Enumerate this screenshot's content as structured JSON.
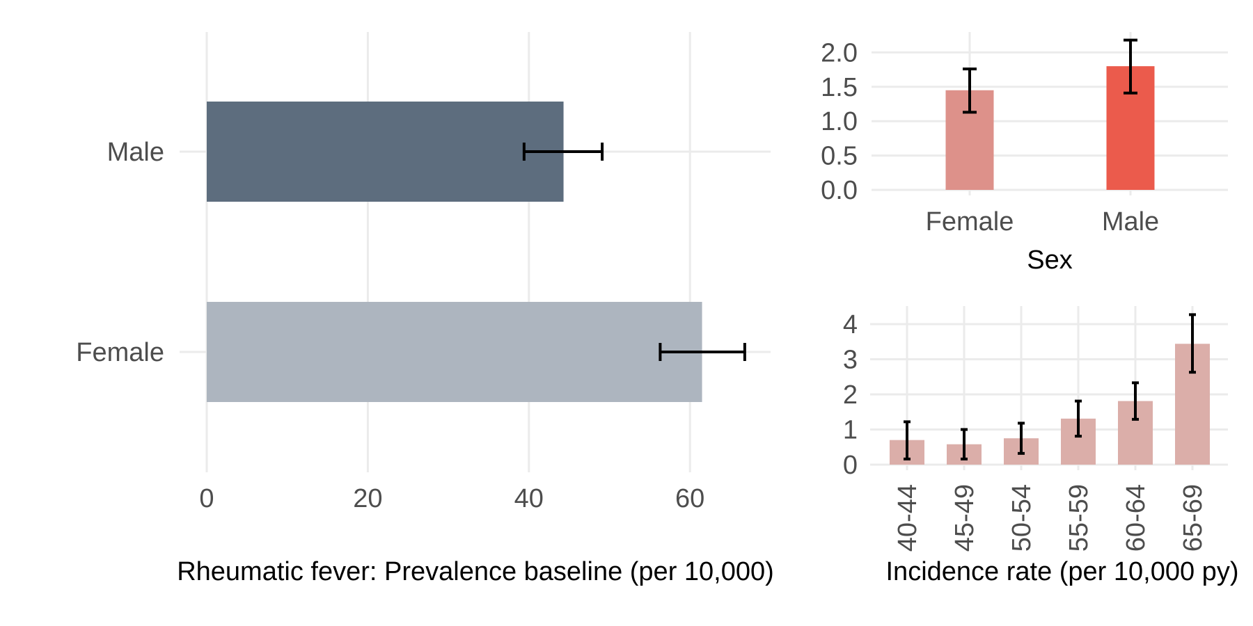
{
  "chart_data": [
    {
      "type": "bar",
      "orientation": "horizontal",
      "categories": [
        "Male",
        "Female"
      ],
      "values": [
        44.3,
        61.5
      ],
      "error_low": [
        39.4,
        56.3
      ],
      "error_high": [
        49.1,
        66.8
      ],
      "colors": [
        "#5d6d7e",
        "#adb5bf"
      ],
      "xlabel": "Rheumatic fever: Prevalence baseline (per 10,000)",
      "ylabel": "",
      "xlim": [
        0,
        70
      ],
      "xticks": [
        "0",
        "20",
        "40",
        "60"
      ],
      "xtick_values": [
        0,
        20,
        40,
        60
      ],
      "grid": true
    },
    {
      "type": "bar",
      "categories": [
        "Female",
        "Male"
      ],
      "values": [
        1.45,
        1.8
      ],
      "error_low": [
        1.13,
        1.41
      ],
      "error_high": [
        1.76,
        2.18
      ],
      "colors": [
        "#dd918a",
        "#eb5b4c"
      ],
      "xlabel": "Sex",
      "ylabel": "",
      "ylim": [
        0,
        2.2
      ],
      "yticks": [
        "0.0",
        "0.5",
        "1.0",
        "1.5",
        "2.0"
      ],
      "ytick_values": [
        0,
        0.5,
        1.0,
        1.5,
        2.0
      ],
      "grid": true
    },
    {
      "type": "bar",
      "categories": [
        "40-44",
        "45-49",
        "50-54",
        "55-59",
        "60-64",
        "65-69"
      ],
      "values": [
        0.7,
        0.58,
        0.75,
        1.31,
        1.81,
        3.44
      ],
      "error_low": [
        0.16,
        0.16,
        0.32,
        0.81,
        1.29,
        2.63
      ],
      "error_high": [
        1.22,
        1.0,
        1.18,
        1.81,
        2.33,
        4.27
      ],
      "colors": [
        "#dbaea9"
      ],
      "xlabel": "Incidence rate (per 10,000 py)",
      "ylabel": "",
      "ylim": [
        0,
        4.4
      ],
      "yticks": [
        "0",
        "1",
        "2",
        "3",
        "4"
      ],
      "ytick_values": [
        0,
        1,
        2,
        3,
        4
      ],
      "grid": true
    }
  ]
}
